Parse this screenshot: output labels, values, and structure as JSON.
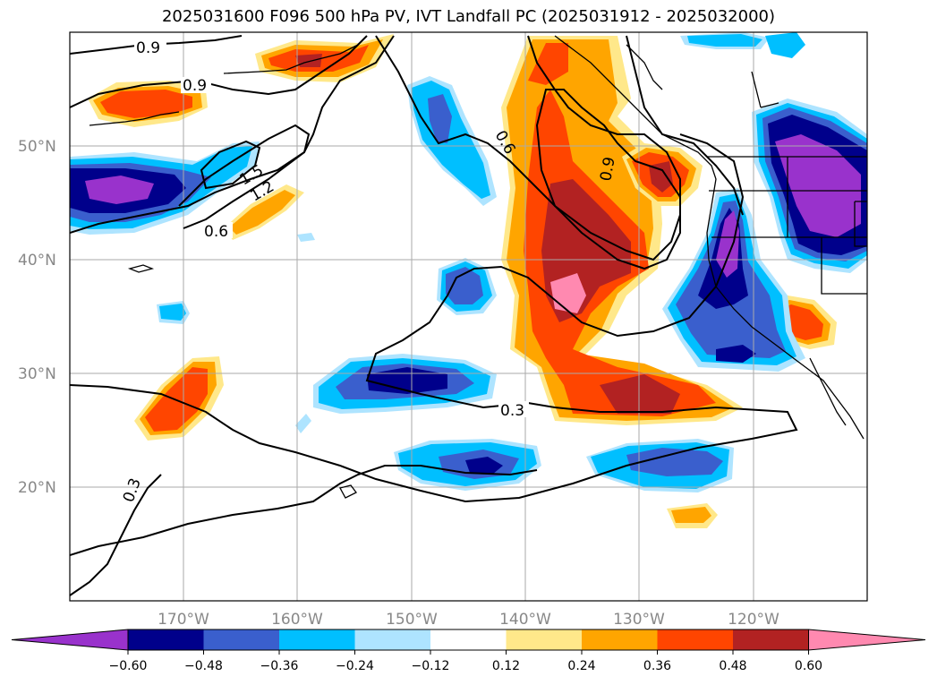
{
  "title": "2025031600 F096 500 hPa PV, IVT Landfall PC (2025031912 - 2025032000)",
  "lat_labels": [
    "50°N",
    "40°N",
    "30°N",
    "20°N"
  ],
  "lon_labels": [
    "170°W",
    "160°W",
    "150°W",
    "140°W",
    "130°W",
    "120°W"
  ],
  "contour_labels": [
    "0.9",
    "0.9",
    "1.5",
    "1.2",
    "0.6",
    "0.6",
    "0.9",
    "0.3",
    "0.3"
  ],
  "colorbar": {
    "ticks": [
      "-0.60",
      "-0.48",
      "-0.36",
      "-0.24",
      "-0.12",
      "0.12",
      "0.24",
      "0.36",
      "0.48",
      "0.60"
    ],
    "colors": [
      "#9932cc",
      "#00008b",
      "#3a5fcd",
      "#00bfff",
      "#aee4ff",
      "#ffffff",
      "#ffe88a",
      "#ffa500",
      "#ff4500",
      "#b22222",
      "#ff89b0"
    ]
  }
}
